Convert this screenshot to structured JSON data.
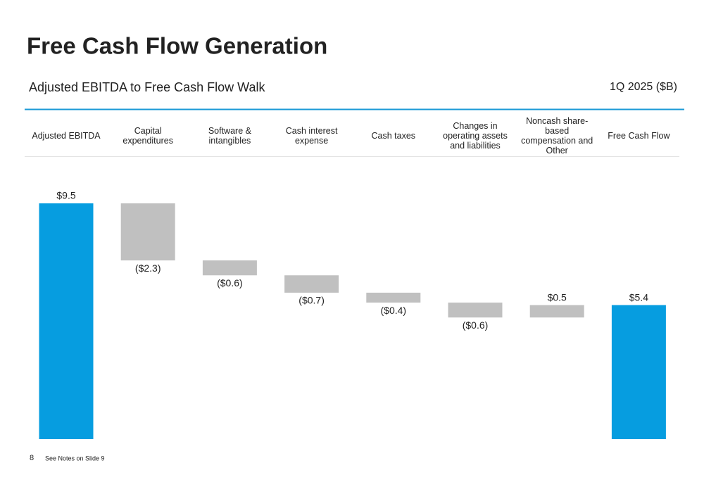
{
  "page": {
    "title": "Free Cash Flow Generation",
    "subtitle": "Adjusted EBITDA to Free Cash Flow Walk",
    "period": "1Q 2025 ($B)",
    "page_number": "8",
    "footnote": "See Notes on Slide 9"
  },
  "chart_data": {
    "type": "waterfall",
    "categories": [
      "Adjusted EBITDA",
      "Capital expenditures",
      "Software & intangibles",
      "Cash interest expense",
      "Cash taxes",
      "Changes in operating assets and liabilities",
      "Noncash share-based compensation and Other",
      "Free Cash Flow"
    ],
    "values": [
      9.5,
      -2.3,
      -0.6,
      -0.7,
      -0.4,
      -0.6,
      0.5,
      5.4
    ],
    "value_labels": [
      "$9.5",
      "($2.3)",
      "($0.6)",
      "($0.7)",
      "($0.4)",
      "($0.6)",
      "$0.5",
      "$5.4"
    ],
    "measure": [
      "absolute",
      "relative",
      "relative",
      "relative",
      "relative",
      "relative",
      "relative",
      "total"
    ],
    "total_color": "#069de0",
    "change_color": "#c0c0c0"
  }
}
